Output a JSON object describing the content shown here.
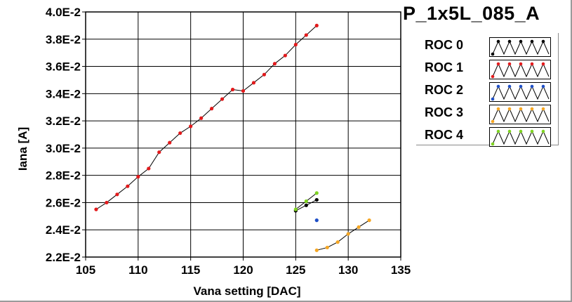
{
  "title": "P_1x5L_085_A",
  "colors": {
    "roc0": "#000000",
    "roc1": "#e31a1c",
    "roc2": "#1f4fc7",
    "roc3": "#f5a623",
    "roc4": "#7ed321",
    "line": "#000000",
    "grid": "#000000"
  },
  "chart_data": {
    "type": "line",
    "title": "P_1x5L_085_A",
    "xlabel": "Vana setting [DAC]",
    "ylabel": "Iana [A]",
    "xlim": [
      105,
      135
    ],
    "ylim": [
      0.022,
      0.04
    ],
    "xticks": [
      105,
      110,
      115,
      120,
      125,
      130,
      135
    ],
    "xtick_labels": [
      "105",
      "110",
      "115",
      "120",
      "125",
      "130",
      "135"
    ],
    "yticks": [
      0.022,
      0.024,
      0.026,
      0.028,
      0.03,
      0.032,
      0.034,
      0.036,
      0.038,
      0.04
    ],
    "ytick_labels": [
      "2.2E-2",
      "2.4E-2",
      "2.6E-2",
      "2.8E-2",
      "3.0E-2",
      "3.2E-2",
      "3.4E-2",
      "3.6E-2",
      "3.8E-2",
      "4.0E-2"
    ],
    "grid": true,
    "legend_position": "right",
    "series": [
      {
        "name": "ROC 0",
        "color": "#000000",
        "x": [
          125,
          126,
          127
        ],
        "y": [
          0.0254,
          0.0258,
          0.0262
        ]
      },
      {
        "name": "ROC 1",
        "color": "#e31a1c",
        "x": [
          106,
          107,
          108,
          109,
          110,
          111,
          112,
          113,
          114,
          115,
          116,
          117,
          118,
          119,
          120,
          121,
          122,
          123,
          124,
          125,
          126,
          127
        ],
        "y": [
          0.0255,
          0.026,
          0.0266,
          0.0272,
          0.0279,
          0.0285,
          0.0297,
          0.0304,
          0.0311,
          0.0316,
          0.0322,
          0.0329,
          0.0336,
          0.0343,
          0.0342,
          0.0348,
          0.0354,
          0.0362,
          0.0368,
          0.0376,
          0.0383,
          0.039
        ]
      },
      {
        "name": "ROC 2",
        "color": "#1f4fc7",
        "x": [
          127
        ],
        "y": [
          0.0247
        ]
      },
      {
        "name": "ROC 3",
        "color": "#f5a623",
        "x": [
          127,
          128,
          129,
          130,
          131,
          132
        ],
        "y": [
          0.0225,
          0.0227,
          0.0231,
          0.0237,
          0.0242,
          0.0247
        ]
      },
      {
        "name": "ROC 4",
        "color": "#7ed321",
        "x": [
          125,
          126,
          127
        ],
        "y": [
          0.0255,
          0.0261,
          0.0267
        ]
      }
    ]
  }
}
